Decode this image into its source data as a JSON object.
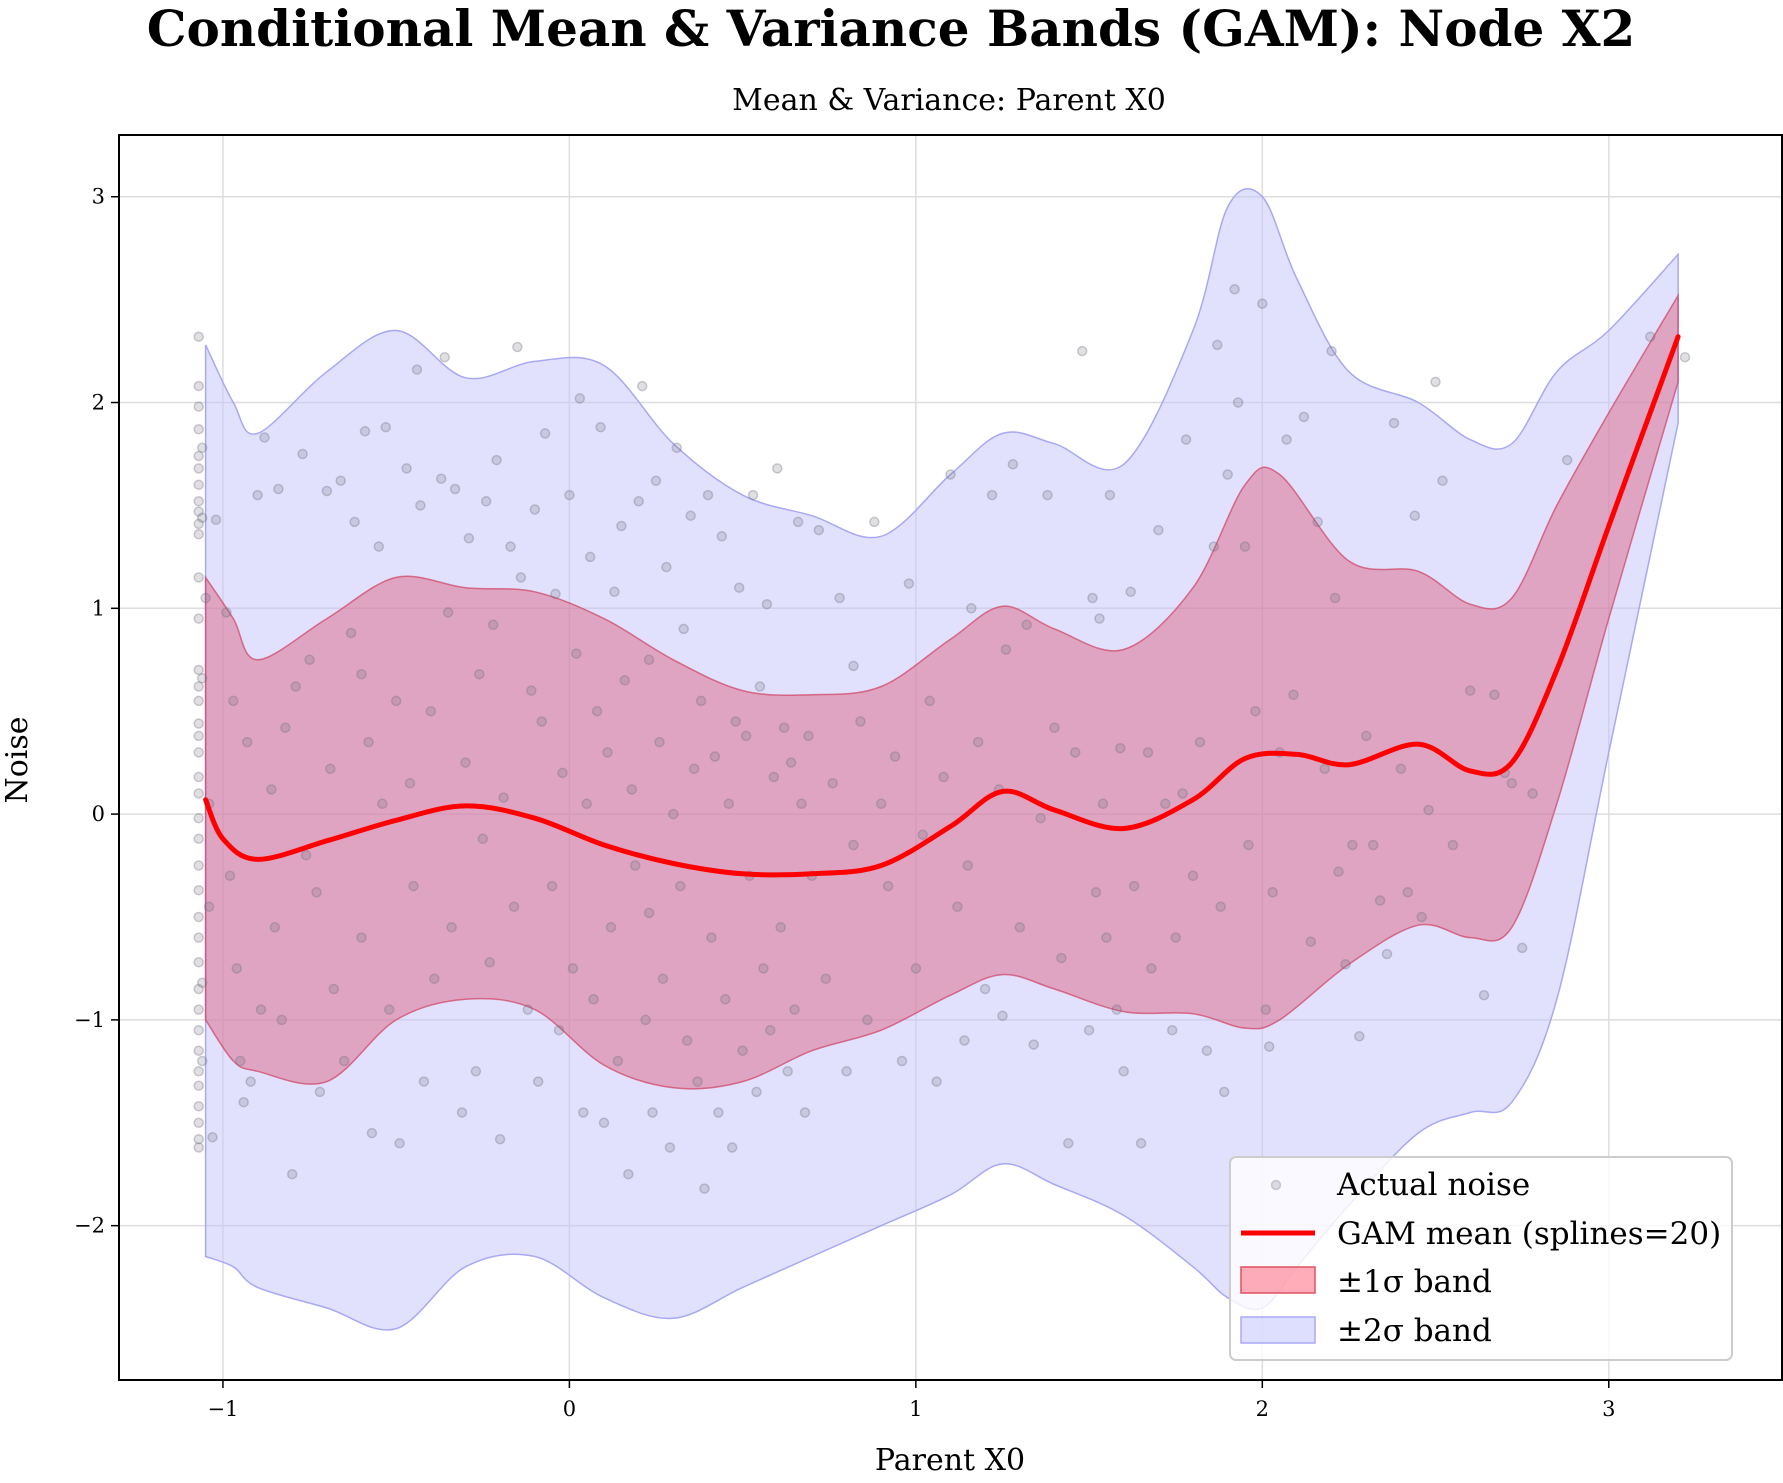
{
  "chart_data": {
    "type": "scatter",
    "title": "Conditional Mean & Variance Bands (GAM): Node X2",
    "subtitle": "Mean & Variance: Parent X0",
    "xlabel": "Parent X0",
    "ylabel": "Noise",
    "xlim": [
      -1.3,
      3.5
    ],
    "ylim": [
      -2.75,
      3.3
    ],
    "x_ticks": [
      -1,
      0,
      1,
      2,
      3
    ],
    "y_ticks": [
      -2,
      -1,
      0,
      1,
      2,
      3
    ],
    "x_tick_labels": [
      "−1",
      "0",
      "1",
      "2",
      "3"
    ],
    "y_tick_labels": [
      "−2",
      "−1",
      "0",
      "1",
      "2",
      "3"
    ],
    "grid": true,
    "legend_position": "bottom-right",
    "legend": [
      {
        "label": "Actual noise",
        "kind": "marker",
        "color": "#808090"
      },
      {
        "label": "GAM mean (splines=20)",
        "kind": "line",
        "color": "#ff0000"
      },
      {
        "label": "±1σ band",
        "kind": "patch",
        "color": "#e07080"
      },
      {
        "label": "±2σ band",
        "kind": "patch",
        "color": "#c8c8ff"
      }
    ],
    "colors": {
      "mean": "#ff0000",
      "band1_fill": "#dc5a7a",
      "band1_edge": "#d04060",
      "band2_fill": "#c4c4fb",
      "band2_edge": "#a8a8f5",
      "points": "#707080"
    },
    "mean_curve": {
      "x": [
        -1.05,
        -1.0,
        -0.9,
        -0.7,
        -0.5,
        -0.3,
        -0.1,
        0.1,
        0.3,
        0.5,
        0.7,
        0.9,
        1.1,
        1.25,
        1.4,
        1.6,
        1.8,
        1.95,
        2.1,
        2.25,
        2.45,
        2.6,
        2.72,
        2.85,
        3.0,
        3.2
      ],
      "y": [
        0.07,
        -0.12,
        -0.22,
        -0.13,
        -0.03,
        0.04,
        -0.02,
        -0.15,
        -0.24,
        -0.29,
        -0.29,
        -0.25,
        -0.06,
        0.11,
        0.02,
        -0.07,
        0.07,
        0.27,
        0.29,
        0.24,
        0.34,
        0.21,
        0.25,
        0.7,
        1.4,
        2.32
      ]
    },
    "band_1sigma": {
      "x": [
        -1.05,
        -0.97,
        -0.9,
        -0.7,
        -0.5,
        -0.3,
        -0.1,
        0.1,
        0.3,
        0.5,
        0.7,
        0.9,
        1.1,
        1.25,
        1.4,
        1.6,
        1.8,
        1.95,
        2.05,
        2.25,
        2.45,
        2.6,
        2.72,
        2.85,
        3.0,
        3.2
      ],
      "upper": [
        1.15,
        0.95,
        0.75,
        0.95,
        1.15,
        1.1,
        1.08,
        0.95,
        0.75,
        0.6,
        0.58,
        0.62,
        0.85,
        1.01,
        0.9,
        0.8,
        1.1,
        1.6,
        1.65,
        1.23,
        1.18,
        1.02,
        1.05,
        1.5,
        1.95,
        2.52
      ],
      "lower": [
        -1.0,
        -1.2,
        -1.25,
        -1.3,
        -1.0,
        -0.9,
        -0.95,
        -1.22,
        -1.33,
        -1.3,
        -1.15,
        -1.05,
        -0.88,
        -0.78,
        -0.85,
        -0.96,
        -0.97,
        -1.04,
        -1.0,
        -0.73,
        -0.54,
        -0.6,
        -0.55,
        0.05,
        0.95,
        2.1
      ]
    },
    "band_2sigma": {
      "x": [
        -1.05,
        -0.97,
        -0.9,
        -0.7,
        -0.5,
        -0.3,
        -0.1,
        0.1,
        0.3,
        0.5,
        0.7,
        0.9,
        1.1,
        1.25,
        1.4,
        1.6,
        1.8,
        1.9,
        2.0,
        2.1,
        2.25,
        2.45,
        2.6,
        2.72,
        2.85,
        3.0,
        3.2
      ],
      "upper": [
        2.28,
        2.0,
        1.85,
        2.15,
        2.35,
        2.12,
        2.2,
        2.18,
        1.8,
        1.55,
        1.45,
        1.35,
        1.65,
        1.85,
        1.8,
        1.7,
        2.35,
        2.95,
        3.0,
        2.6,
        2.15,
        2.0,
        1.82,
        1.8,
        2.15,
        2.35,
        2.72
      ],
      "lower": [
        -2.15,
        -2.2,
        -2.3,
        -2.4,
        -2.5,
        -2.2,
        -2.15,
        -2.35,
        -2.45,
        -2.3,
        -2.15,
        -2.0,
        -1.85,
        -1.7,
        -1.8,
        -1.95,
        -2.2,
        -2.35,
        -2.4,
        -2.2,
        -1.9,
        -1.55,
        -1.45,
        -1.4,
        -0.9,
        0.3,
        1.9
      ]
    },
    "points": [
      [
        -1.07,
        2.32
      ],
      [
        -1.07,
        2.08
      ],
      [
        -1.07,
        1.98
      ],
      [
        -1.07,
        1.87
      ],
      [
        -1.07,
        1.74
      ],
      [
        -1.07,
        1.68
      ],
      [
        -1.07,
        1.6
      ],
      [
        -1.07,
        1.52
      ],
      [
        -1.07,
        1.47
      ],
      [
        -1.07,
        1.41
      ],
      [
        -1.07,
        1.36
      ],
      [
        -1.07,
        1.15
      ],
      [
        -1.07,
        0.95
      ],
      [
        -1.07,
        0.7
      ],
      [
        -1.07,
        0.62
      ],
      [
        -1.07,
        0.55
      ],
      [
        -1.07,
        0.44
      ],
      [
        -1.07,
        0.38
      ],
      [
        -1.07,
        0.3
      ],
      [
        -1.07,
        0.18
      ],
      [
        -1.07,
        0.1
      ],
      [
        -1.07,
        -0.02
      ],
      [
        -1.07,
        -0.12
      ],
      [
        -1.07,
        -0.25
      ],
      [
        -1.07,
        -0.37
      ],
      [
        -1.07,
        -0.5
      ],
      [
        -1.07,
        -0.6
      ],
      [
        -1.07,
        -0.72
      ],
      [
        -1.07,
        -0.85
      ],
      [
        -1.07,
        -0.95
      ],
      [
        -1.07,
        -1.05
      ],
      [
        -1.07,
        -1.15
      ],
      [
        -1.07,
        -1.25
      ],
      [
        -1.07,
        -1.32
      ],
      [
        -1.07,
        -1.42
      ],
      [
        -1.07,
        -1.5
      ],
      [
        -1.07,
        -1.58
      ],
      [
        -1.07,
        -1.62
      ],
      [
        -1.06,
        1.78
      ],
      [
        -1.06,
        1.44
      ],
      [
        -1.06,
        0.66
      ],
      [
        -1.06,
        -0.82
      ],
      [
        -1.06,
        -1.2
      ],
      [
        -1.05,
        1.05
      ],
      [
        -1.04,
        -0.45
      ],
      [
        -1.04,
        0.05
      ],
      [
        -1.03,
        -1.57
      ],
      [
        -1.02,
        1.43
      ],
      [
        -0.99,
        0.98
      ],
      [
        -0.98,
        -0.3
      ],
      [
        -0.97,
        0.55
      ],
      [
        -0.96,
        -0.75
      ],
      [
        -0.95,
        -1.2
      ],
      [
        -0.94,
        -1.4
      ],
      [
        -0.93,
        0.35
      ],
      [
        -0.92,
        -1.3
      ],
      [
        -0.9,
        1.55
      ],
      [
        -0.89,
        -0.95
      ],
      [
        -0.88,
        1.83
      ],
      [
        -0.86,
        0.12
      ],
      [
        -0.85,
        -0.55
      ],
      [
        -0.84,
        1.58
      ],
      [
        -0.83,
        -1.0
      ],
      [
        -0.82,
        0.42
      ],
      [
        -0.8,
        -1.75
      ],
      [
        -0.79,
        0.62
      ],
      [
        -0.77,
        1.75
      ],
      [
        -0.76,
        -0.2
      ],
      [
        -0.75,
        0.75
      ],
      [
        -0.73,
        -0.38
      ],
      [
        -0.72,
        -1.35
      ],
      [
        -0.7,
        1.57
      ],
      [
        -0.69,
        0.22
      ],
      [
        -0.68,
        -0.85
      ],
      [
        -0.66,
        1.62
      ],
      [
        -0.65,
        -1.2
      ],
      [
        -0.63,
        0.88
      ],
      [
        -0.62,
        1.42
      ],
      [
        -0.6,
        -0.6
      ],
      [
        -0.59,
        1.86
      ],
      [
        -0.58,
        0.35
      ],
      [
        -0.57,
        -1.55
      ],
      [
        -0.55,
        1.3
      ],
      [
        -0.54,
        0.05
      ],
      [
        -0.53,
        1.88
      ],
      [
        -0.52,
        -0.95
      ],
      [
        -0.5,
        0.55
      ],
      [
        -0.49,
        -1.6
      ],
      [
        -0.47,
        1.68
      ],
      [
        -0.46,
        0.15
      ],
      [
        -0.45,
        -0.35
      ],
      [
        -0.44,
        2.16
      ],
      [
        -0.43,
        1.5
      ],
      [
        -0.42,
        -1.3
      ],
      [
        -0.4,
        0.5
      ],
      [
        -0.39,
        -0.8
      ],
      [
        -0.37,
        1.63
      ],
      [
        -0.36,
        2.22
      ],
      [
        -0.35,
        0.98
      ],
      [
        -0.34,
        -0.55
      ],
      [
        -0.33,
        1.58
      ],
      [
        -0.31,
        -1.45
      ],
      [
        -0.3,
        0.25
      ],
      [
        -0.29,
        1.34
      ],
      [
        -0.27,
        -1.25
      ],
      [
        -0.26,
        0.68
      ],
      [
        -0.24,
        1.52
      ],
      [
        -0.23,
        -0.72
      ],
      [
        -0.22,
        0.92
      ],
      [
        -0.21,
        1.72
      ],
      [
        -0.2,
        -1.58
      ],
      [
        -0.19,
        0.08
      ],
      [
        -0.17,
        1.3
      ],
      [
        -0.16,
        -0.45
      ],
      [
        -0.15,
        2.27
      ],
      [
        -0.14,
        1.15
      ],
      [
        -0.12,
        -0.95
      ],
      [
        -0.11,
        0.6
      ],
      [
        -0.1,
        1.48
      ],
      [
        -0.09,
        -1.3
      ],
      [
        -0.08,
        0.45
      ],
      [
        -0.07,
        1.85
      ],
      [
        -0.05,
        -0.35
      ],
      [
        -0.04,
        1.07
      ],
      [
        -0.03,
        -1.05
      ],
      [
        -0.02,
        0.2
      ],
      [
        0.0,
        1.55
      ],
      [
        0.01,
        -0.75
      ],
      [
        0.02,
        0.78
      ],
      [
        0.03,
        2.02
      ],
      [
        0.04,
        -1.45
      ],
      [
        0.05,
        0.05
      ],
      [
        0.06,
        1.25
      ],
      [
        0.07,
        -0.9
      ],
      [
        0.08,
        0.5
      ],
      [
        0.09,
        1.88
      ],
      [
        0.1,
        -1.5
      ],
      [
        0.11,
        0.3
      ],
      [
        0.12,
        -0.55
      ],
      [
        0.13,
        1.08
      ],
      [
        0.14,
        -1.2
      ],
      [
        0.15,
        1.4
      ],
      [
        0.16,
        0.65
      ],
      [
        0.17,
        -1.75
      ],
      [
        0.18,
        0.12
      ],
      [
        0.19,
        -0.25
      ],
      [
        0.2,
        1.52
      ],
      [
        0.21,
        2.08
      ],
      [
        0.22,
        -1.0
      ],
      [
        0.23,
        0.75
      ],
      [
        0.24,
        -1.45
      ],
      [
        0.25,
        1.62
      ],
      [
        0.26,
        0.35
      ],
      [
        0.27,
        -0.8
      ],
      [
        0.28,
        1.2
      ],
      [
        0.29,
        -1.62
      ],
      [
        0.3,
        0.0
      ],
      [
        0.31,
        1.78
      ],
      [
        0.32,
        -0.35
      ],
      [
        0.33,
        0.9
      ],
      [
        0.34,
        -1.1
      ],
      [
        0.35,
        1.45
      ],
      [
        0.36,
        0.22
      ],
      [
        0.37,
        -1.3
      ],
      [
        0.38,
        0.55
      ],
      [
        0.39,
        -1.82
      ],
      [
        0.4,
        1.55
      ],
      [
        0.41,
        -0.6
      ],
      [
        0.42,
        0.28
      ],
      [
        0.43,
        -1.45
      ],
      [
        0.44,
        1.35
      ],
      [
        0.45,
        -0.9
      ],
      [
        0.46,
        0.05
      ],
      [
        0.47,
        -1.62
      ],
      [
        0.48,
        0.45
      ],
      [
        0.49,
        1.1
      ],
      [
        0.5,
        -1.15
      ],
      [
        0.51,
        0.38
      ],
      [
        0.52,
        -0.3
      ],
      [
        0.53,
        1.55
      ],
      [
        0.54,
        -1.35
      ],
      [
        0.55,
        0.62
      ],
      [
        0.56,
        -0.75
      ],
      [
        0.57,
        1.02
      ],
      [
        0.58,
        -1.05
      ],
      [
        0.59,
        0.18
      ],
      [
        0.6,
        1.68
      ],
      [
        0.61,
        -0.55
      ],
      [
        0.62,
        0.42
      ],
      [
        0.63,
        -1.25
      ],
      [
        0.64,
        0.25
      ],
      [
        0.65,
        -0.95
      ],
      [
        0.66,
        1.42
      ],
      [
        0.67,
        0.05
      ],
      [
        0.68,
        -1.45
      ],
      [
        0.69,
        0.38
      ],
      [
        0.7,
        -0.3
      ],
      [
        0.72,
        1.38
      ],
      [
        0.74,
        -0.8
      ],
      [
        0.76,
        0.15
      ],
      [
        0.78,
        1.05
      ],
      [
        0.8,
        -1.25
      ],
      [
        0.82,
        -0.15
      ],
      [
        0.84,
        0.45
      ],
      [
        0.86,
        -1.0
      ],
      [
        0.88,
        1.42
      ],
      [
        0.9,
        0.05
      ],
      [
        0.92,
        -0.35
      ],
      [
        0.94,
        0.28
      ],
      [
        0.96,
        -1.2
      ],
      [
        0.98,
        1.12
      ],
      [
        1.0,
        -0.75
      ],
      [
        1.02,
        -0.1
      ],
      [
        1.04,
        0.55
      ],
      [
        1.06,
        -1.3
      ],
      [
        1.08,
        0.18
      ],
      [
        1.1,
        1.65
      ],
      [
        1.12,
        -0.45
      ],
      [
        1.14,
        -1.1
      ],
      [
        1.16,
        1.0
      ],
      [
        1.18,
        0.35
      ],
      [
        1.2,
        -0.85
      ],
      [
        1.22,
        1.55
      ],
      [
        1.24,
        0.12
      ],
      [
        1.25,
        -0.98
      ],
      [
        1.26,
        0.8
      ],
      [
        1.28,
        1.7
      ],
      [
        1.3,
        -0.55
      ],
      [
        1.32,
        0.92
      ],
      [
        1.34,
        -1.12
      ],
      [
        1.36,
        -0.02
      ],
      [
        1.38,
        1.55
      ],
      [
        1.4,
        0.42
      ],
      [
        1.42,
        -0.7
      ],
      [
        1.44,
        -1.6
      ],
      [
        1.46,
        0.3
      ],
      [
        1.48,
        2.25
      ],
      [
        1.5,
        -1.05
      ],
      [
        1.51,
        1.05
      ],
      [
        1.52,
        -0.38
      ],
      [
        1.53,
        0.95
      ],
      [
        1.54,
        0.05
      ],
      [
        1.55,
        -0.6
      ],
      [
        1.56,
        1.55
      ],
      [
        1.58,
        -0.95
      ],
      [
        1.59,
        0.32
      ],
      [
        1.6,
        -1.25
      ],
      [
        1.62,
        1.08
      ],
      [
        1.63,
        -0.35
      ],
      [
        1.65,
        -1.6
      ],
      [
        1.67,
        0.3
      ],
      [
        1.68,
        -0.75
      ],
      [
        1.7,
        1.38
      ],
      [
        1.72,
        0.05
      ],
      [
        1.74,
        -1.05
      ],
      [
        1.75,
        -0.6
      ],
      [
        1.77,
        0.1
      ],
      [
        1.78,
        1.82
      ],
      [
        1.8,
        -0.3
      ],
      [
        1.82,
        0.35
      ],
      [
        1.84,
        -1.15
      ],
      [
        1.86,
        1.3
      ],
      [
        1.87,
        2.28
      ],
      [
        1.88,
        -0.45
      ],
      [
        1.89,
        -1.35
      ],
      [
        1.9,
        1.65
      ],
      [
        1.92,
        2.55
      ],
      [
        1.93,
        2.0
      ],
      [
        1.95,
        1.3
      ],
      [
        1.96,
        -0.15
      ],
      [
        1.98,
        0.5
      ],
      [
        2.0,
        2.48
      ],
      [
        2.01,
        -0.95
      ],
      [
        2.02,
        -1.13
      ],
      [
        2.03,
        -0.38
      ],
      [
        2.05,
        0.3
      ],
      [
        2.07,
        1.82
      ],
      [
        2.09,
        0.58
      ],
      [
        2.12,
        1.93
      ],
      [
        2.14,
        -0.62
      ],
      [
        2.16,
        1.42
      ],
      [
        2.18,
        0.22
      ],
      [
        2.2,
        2.25
      ],
      [
        2.21,
        1.05
      ],
      [
        2.22,
        -0.28
      ],
      [
        2.24,
        -0.73
      ],
      [
        2.26,
        -0.15
      ],
      [
        2.28,
        -1.08
      ],
      [
        2.3,
        0.38
      ],
      [
        2.32,
        -0.15
      ],
      [
        2.34,
        -0.42
      ],
      [
        2.36,
        -0.68
      ],
      [
        2.38,
        1.9
      ],
      [
        2.4,
        0.22
      ],
      [
        2.42,
        -0.38
      ],
      [
        2.44,
        1.45
      ],
      [
        2.46,
        -0.5
      ],
      [
        2.48,
        0.02
      ],
      [
        2.5,
        2.1
      ],
      [
        2.52,
        1.62
      ],
      [
        2.55,
        -0.15
      ],
      [
        2.6,
        0.6
      ],
      [
        2.64,
        -0.88
      ],
      [
        2.67,
        0.58
      ],
      [
        2.7,
        0.2
      ],
      [
        2.72,
        0.15
      ],
      [
        2.75,
        -0.65
      ],
      [
        2.78,
        0.1
      ],
      [
        2.88,
        1.72
      ],
      [
        3.12,
        2.32
      ],
      [
        3.22,
        2.22
      ],
      [
        0.23,
        -0.48
      ],
      [
        -0.6,
        0.68
      ],
      [
        -0.25,
        -0.12
      ],
      [
        1.15,
        -0.25
      ],
      [
        0.82,
        0.72
      ]
    ]
  }
}
